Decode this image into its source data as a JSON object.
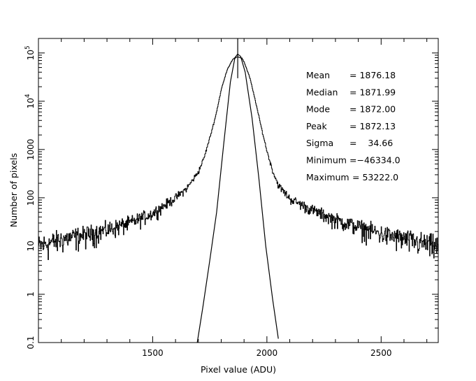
{
  "chart_data": {
    "type": "line",
    "xlabel": "Pixel value (ADU)",
    "ylabel": "Number of pixels",
    "xlim": [
      1000,
      2750
    ],
    "ylim": [
      0.1,
      200000
    ],
    "yscale": "log",
    "grid": false,
    "x_tick_labels": [
      {
        "x": 1500,
        "label": "1500"
      },
      {
        "x": 2000,
        "label": "2000"
      },
      {
        "x": 2500,
        "label": "2500"
      }
    ],
    "y_tick_labels": [
      {
        "y": 0.1,
        "label": "0.1",
        "base": "",
        "exp": ""
      },
      {
        "y": 1,
        "label": "1",
        "base": "",
        "exp": ""
      },
      {
        "y": 10,
        "label": "10",
        "base": "",
        "exp": ""
      },
      {
        "y": 100,
        "label": "100",
        "base": "",
        "exp": ""
      },
      {
        "y": 1000,
        "label": "1000",
        "base": "",
        "exp": ""
      },
      {
        "y": 10000,
        "label": "",
        "base": "10",
        "exp": "4"
      },
      {
        "y": 100000,
        "label": "",
        "base": "10",
        "exp": "5"
      }
    ],
    "series": [
      {
        "kind": "histogram",
        "x": [
          1000,
          1100,
          1200,
          1300,
          1400,
          1500,
          1600,
          1650,
          1700,
          1725,
          1750,
          1775,
          1800,
          1825,
          1850,
          1865,
          1876,
          1890,
          1900,
          1925,
          1950,
          1975,
          2000,
          2025,
          2050,
          2100,
          2200,
          2300,
          2400,
          2500,
          2600,
          2750
        ],
        "values": [
          10,
          14,
          17,
          22,
          30,
          48,
          100,
          160,
          350,
          700,
          1800,
          5000,
          18000,
          45000,
          75000,
          81000,
          82000,
          78000,
          64000,
          30000,
          9500,
          2800,
          900,
          350,
          180,
          95,
          55,
          35,
          25,
          18,
          14,
          10
        ]
      },
      {
        "kind": "gaussian-fit",
        "x": [
          1695,
          1720,
          1750,
          1780,
          1810,
          1840,
          1860,
          1872,
          1885,
          1905,
          1935,
          1965,
          1995,
          2025,
          2050
        ],
        "values": [
          0.1,
          0.55,
          5,
          50,
          1200,
          25000,
          80000,
          95000,
          85000,
          40000,
          4500,
          250,
          10,
          0.8,
          0.12
        ]
      },
      {
        "kind": "peak-marker",
        "x": [
          1872.13,
          1872.13
        ],
        "values": [
          30000,
          200000
        ]
      }
    ],
    "annotations": [
      {
        "label": "Mean",
        "value": "= 1876.18"
      },
      {
        "label": "Median",
        "value": "= 1871.99"
      },
      {
        "label": "Mode",
        "value": "= 1872.00"
      },
      {
        "label": "Peak",
        "value": "= 1872.13"
      },
      {
        "label": "Sigma",
        "value": "=    34.66"
      },
      {
        "label": "Minimum",
        "value": "=−46334.0"
      },
      {
        "label": "Maximum",
        "value": "= 53222.0"
      }
    ]
  }
}
